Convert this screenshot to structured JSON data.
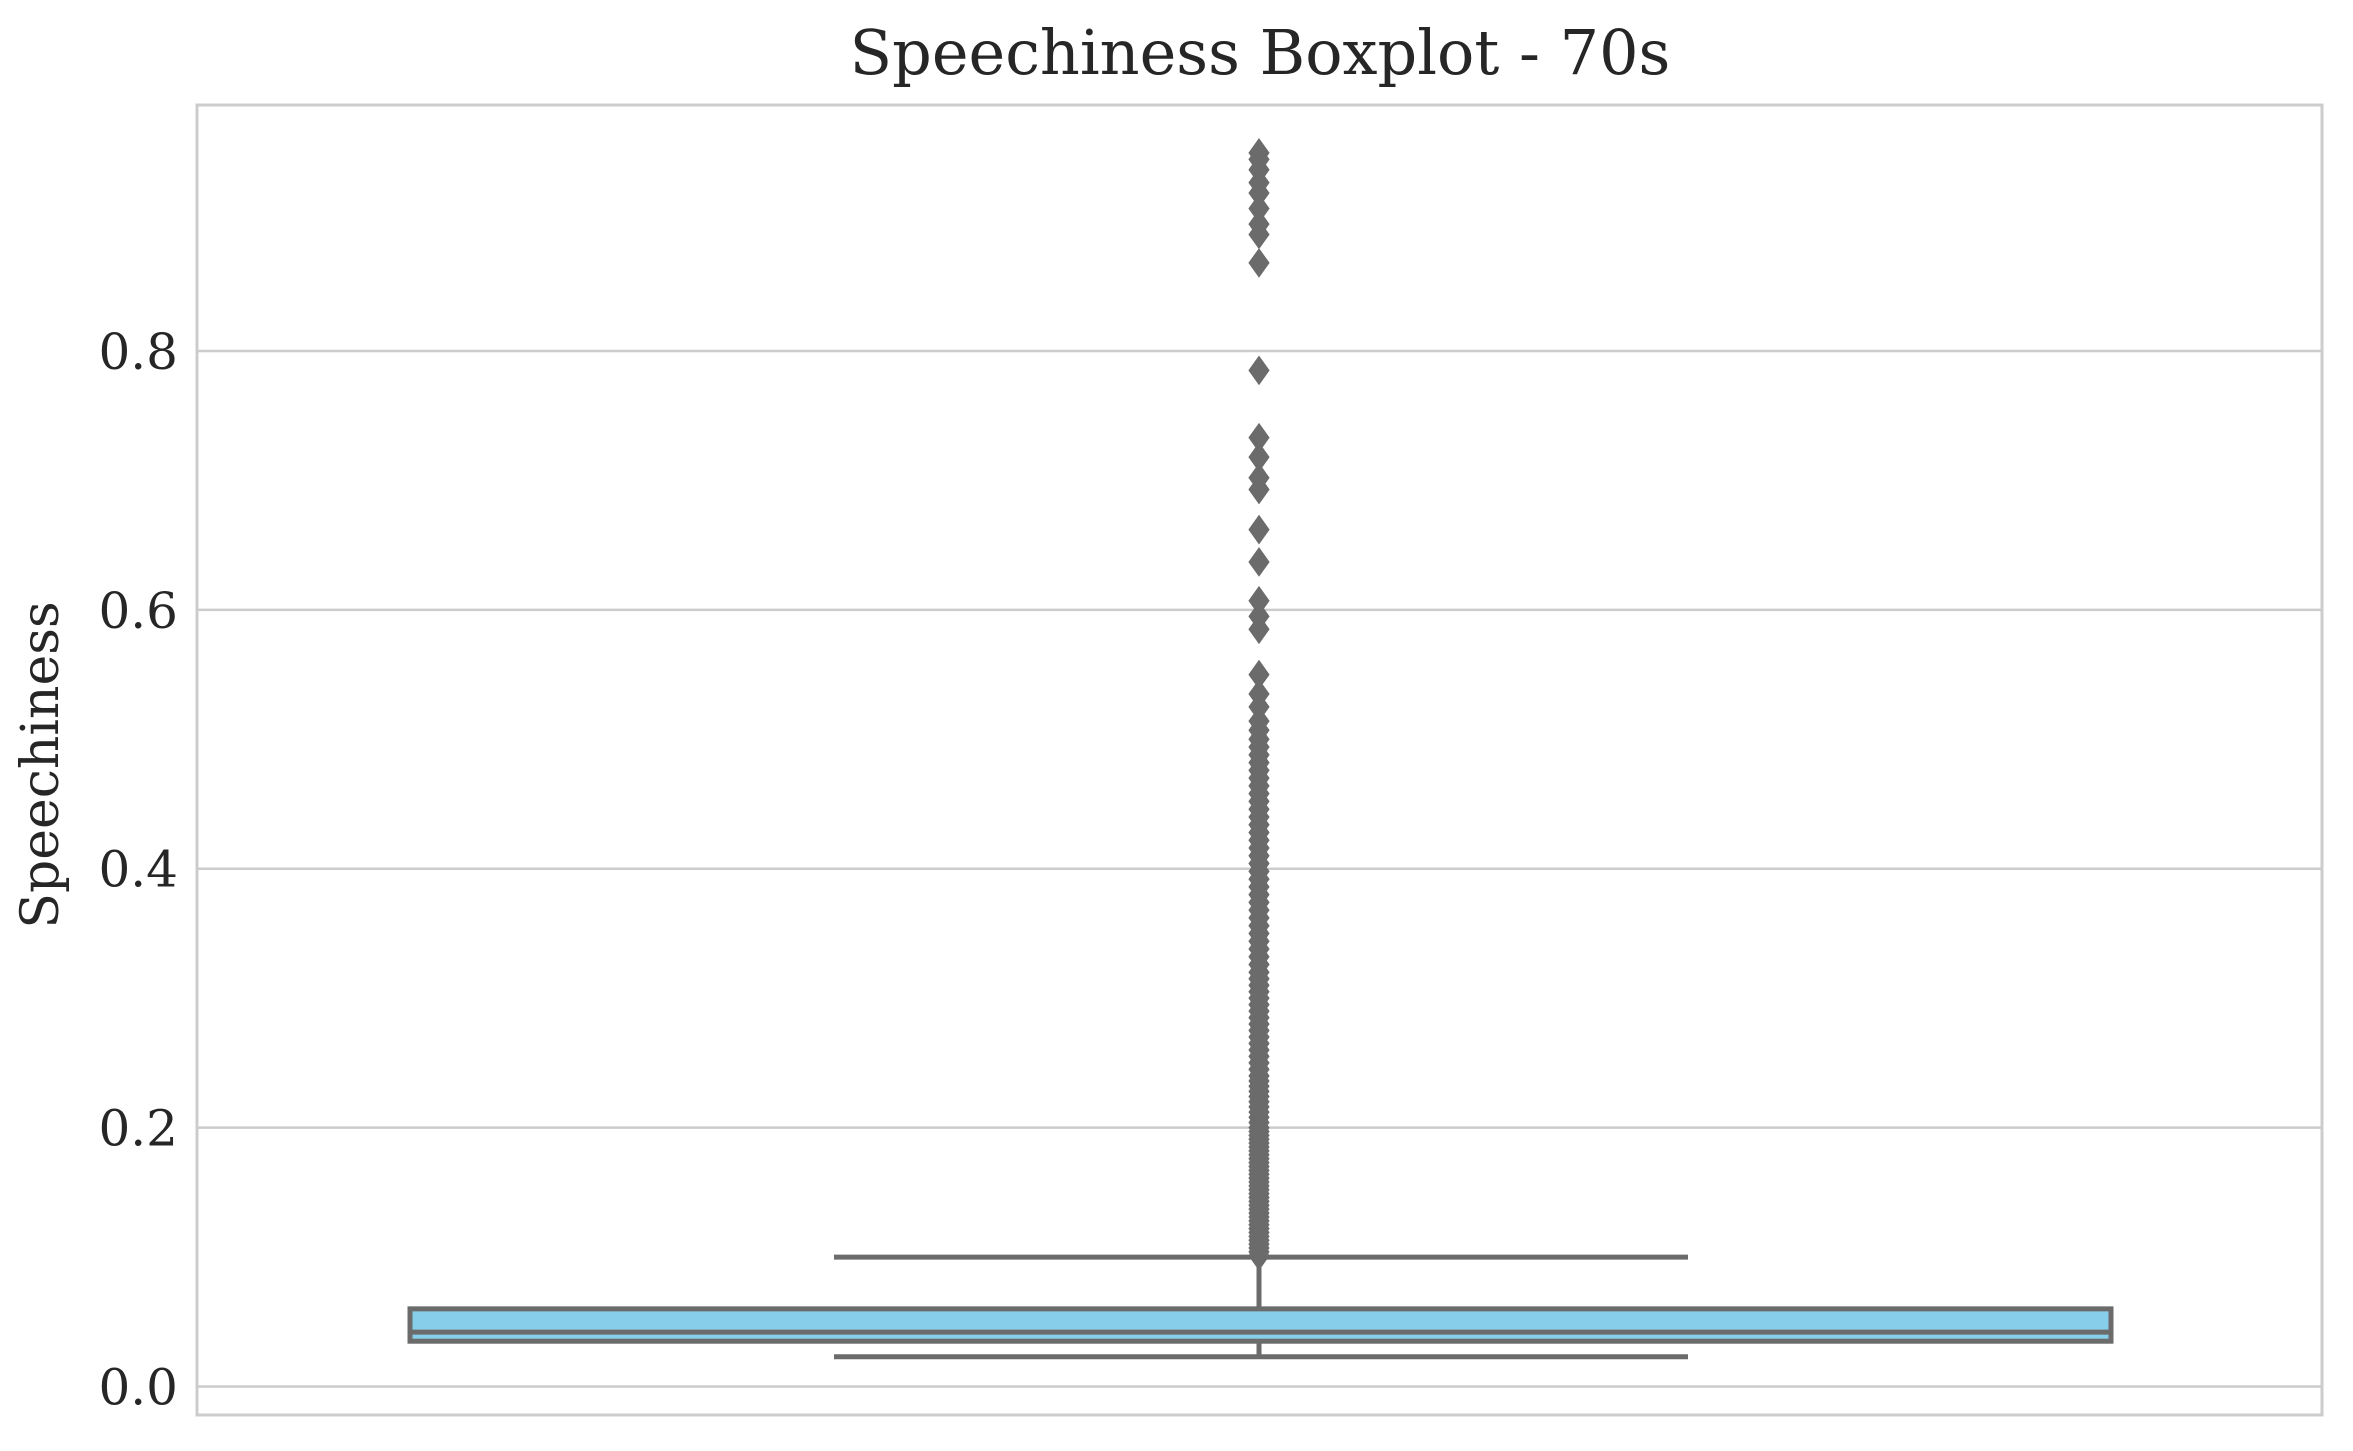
{
  "chart_data": {
    "type": "boxplot",
    "title": "Speechiness Boxplot - 70s",
    "xlabel": "",
    "ylabel": "Speechiness",
    "ylim": [
      -0.022,
      0.99
    ],
    "yticks": [
      0.0,
      0.2,
      0.4,
      0.6,
      0.8
    ],
    "ytick_labels": [
      "0.0",
      "0.2",
      "0.4",
      "0.6",
      "0.8"
    ],
    "grid": true,
    "box": {
      "whisker_low": 0.023,
      "q1": 0.035,
      "median": 0.042,
      "q3": 0.06,
      "whisker_high": 0.1
    },
    "outliers": [
      0.101,
      0.104,
      0.107,
      0.11,
      0.113,
      0.116,
      0.119,
      0.122,
      0.125,
      0.128,
      0.131,
      0.134,
      0.137,
      0.14,
      0.143,
      0.146,
      0.149,
      0.152,
      0.155,
      0.158,
      0.161,
      0.164,
      0.167,
      0.17,
      0.173,
      0.176,
      0.179,
      0.182,
      0.185,
      0.188,
      0.191,
      0.194,
      0.197,
      0.2,
      0.204,
      0.208,
      0.212,
      0.216,
      0.22,
      0.224,
      0.228,
      0.232,
      0.236,
      0.24,
      0.245,
      0.25,
      0.255,
      0.26,
      0.265,
      0.27,
      0.275,
      0.28,
      0.285,
      0.29,
      0.295,
      0.3,
      0.305,
      0.31,
      0.315,
      0.32,
      0.326,
      0.332,
      0.338,
      0.344,
      0.35,
      0.356,
      0.362,
      0.368,
      0.374,
      0.38,
      0.386,
      0.392,
      0.398,
      0.404,
      0.41,
      0.416,
      0.422,
      0.428,
      0.434,
      0.44,
      0.446,
      0.452,
      0.458,
      0.464,
      0.47,
      0.476,
      0.482,
      0.488,
      0.494,
      0.5,
      0.507,
      0.514,
      0.525,
      0.535,
      0.55,
      0.585,
      0.595,
      0.607,
      0.637,
      0.662,
      0.693,
      0.702,
      0.718,
      0.733,
      0.785,
      0.868,
      0.89,
      0.898,
      0.91,
      0.922,
      0.93,
      0.94,
      0.948,
      0.953
    ],
    "colors": {
      "box_fill": "#87ceeb",
      "line": "#6b6b6b",
      "grid": "#cccccc",
      "frame": "#cccccc"
    }
  }
}
